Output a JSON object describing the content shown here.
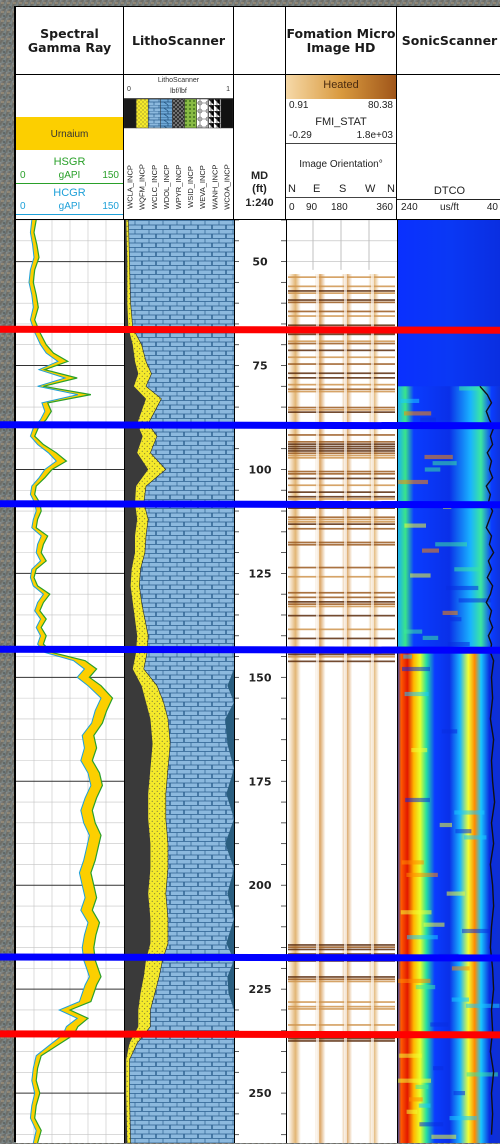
{
  "panel_titles": {
    "gamma_1": "Spectral",
    "gamma_2": "Gamma Ray",
    "litho": "LithoScanner",
    "fmi_1": "Fomation Micro",
    "fmi_2": "Image HD",
    "sonic": "SonicScanner"
  },
  "gamma_header": {
    "fill_label": "Urnaium",
    "hsgr": {
      "name": "HSGR",
      "min": "0",
      "unit": "gAPI",
      "max": "150"
    },
    "hcgr": {
      "name": "HCGR",
      "min": "0",
      "unit": "gAPI",
      "max": "150"
    }
  },
  "litho_header": {
    "title": "LithoScanner",
    "unit": "lbf/lbf",
    "min": "0",
    "max": "1",
    "curves": [
      "WCLA_INCP",
      "WQFM_INCP",
      "WCLC_INCP",
      "WDOL_INCP",
      "WPYR_INCP",
      "WSID_INCP",
      "WEVA_INCP",
      "WANH_INCP",
      "WCOA_INCP"
    ]
  },
  "depth_header": {
    "label": "MD",
    "unit": "(ft)",
    "scale": "1:240"
  },
  "fmi_header": {
    "heated": "Heated",
    "heated_min": "0.91",
    "heated_max": "80.38",
    "stat_name": "FMI_STAT",
    "stat_min": "-0.29",
    "stat_max": "1.8e+03",
    "orientation": "Image Orientation°",
    "directions": [
      "N",
      "E",
      "S",
      "W",
      "N"
    ],
    "ticks": [
      "0",
      "90",
      "180",
      "360"
    ]
  },
  "sonic_header": {
    "curve": "DTCO",
    "min": "240",
    "unit": "us/ft",
    "max": "40"
  },
  "chart_data": {
    "type": "line",
    "y_axis": "MD (ft)",
    "depth_range": [
      40,
      262
    ],
    "depth_ticks": [
      50,
      75,
      100,
      125,
      150,
      175,
      200,
      225,
      250
    ],
    "markers": [
      {
        "depth": 66.5,
        "color": "#ff0000"
      },
      {
        "depth": 89.5,
        "color": "#0000ff"
      },
      {
        "depth": 108.5,
        "color": "#0000ff"
      },
      {
        "depth": 143.5,
        "color": "#0000ff"
      },
      {
        "depth": 217.5,
        "color": "#0000ff"
      },
      {
        "depth": 236,
        "color": "#ff0000"
      }
    ],
    "gamma_ray": {
      "unit": "gAPI",
      "range": [
        0,
        150
      ],
      "depths": [
        40,
        43,
        46,
        49,
        52,
        55,
        58,
        61,
        64,
        67,
        70,
        72,
        74,
        76,
        78,
        80,
        82,
        84,
        86,
        88,
        90,
        92,
        94,
        96,
        98,
        100,
        102,
        104,
        106,
        108,
        110,
        112,
        114,
        116,
        118,
        120,
        122,
        124,
        126,
        128,
        130,
        132,
        134,
        136,
        138,
        140,
        142,
        144,
        146,
        148,
        150,
        152,
        155,
        158,
        161,
        164,
        167,
        170,
        173,
        176,
        179,
        182,
        185,
        188,
        191,
        194,
        197,
        200,
        203,
        206,
        209,
        212,
        215,
        218,
        220,
        222,
        224,
        226,
        228,
        230,
        232,
        234,
        236,
        238,
        241,
        244,
        247,
        250,
        253,
        256,
        259,
        262
      ],
      "HCGR": [
        22,
        20,
        23,
        25,
        20,
        18,
        22,
        24,
        20,
        26,
        34,
        42,
        58,
        32,
        68,
        30,
        86,
        36,
        40,
        34,
        24,
        20,
        30,
        45,
        56,
        40,
        32,
        22,
        20,
        26,
        28,
        24,
        22,
        35,
        30,
        28,
        34,
        22,
        20,
        24,
        38,
        30,
        26,
        34,
        28,
        34,
        30,
        40,
        80,
        95,
        85,
        100,
        118,
        110,
        105,
        92,
        95,
        90,
        100,
        104,
        96,
        90,
        94,
        102,
        98,
        94,
        88,
        92,
        96,
        90,
        100,
        95,
        92,
        94,
        98,
        102,
        96,
        92,
        88,
        60,
        85,
        70,
        65,
        50,
        28,
        24,
        22,
        26,
        22,
        20,
        28,
        24
      ],
      "HSGR": [
        28,
        25,
        29,
        32,
        26,
        24,
        28,
        31,
        26,
        33,
        42,
        52,
        72,
        40,
        85,
        38,
        104,
        44,
        49,
        42,
        31,
        26,
        38,
        56,
        70,
        50,
        40,
        28,
        26,
        33,
        35,
        30,
        28,
        44,
        38,
        35,
        42,
        28,
        25,
        30,
        47,
        38,
        33,
        42,
        35,
        42,
        38,
        50,
        96,
        112,
        102,
        118,
        134,
        126,
        120,
        108,
        112,
        106,
        116,
        120,
        112,
        106,
        110,
        118,
        114,
        110,
        104,
        108,
        112,
        106,
        116,
        111,
        108,
        110,
        114,
        118,
        112,
        108,
        104,
        75,
        100,
        86,
        80,
        62,
        35,
        30,
        28,
        33,
        28,
        26,
        35,
        30
      ]
    },
    "litho": {
      "unit": "lbf/lbf",
      "range": [
        0,
        1
      ],
      "depths": [
        40,
        50,
        60,
        66,
        70,
        74,
        77,
        80,
        83,
        86,
        89,
        92,
        96,
        100,
        104,
        108,
        112,
        116,
        120,
        124,
        128,
        132,
        136,
        140,
        144,
        148,
        152,
        156,
        160,
        166,
        172,
        178,
        184,
        190,
        196,
        202,
        208,
        214,
        218,
        222,
        226,
        230,
        234,
        238,
        242,
        250,
        262
      ],
      "WCLA_INCP": [
        0.02,
        0.03,
        0.03,
        0.04,
        0.08,
        0.1,
        0.13,
        0.09,
        0.2,
        0.16,
        0.12,
        0.17,
        0.12,
        0.22,
        0.11,
        0.1,
        0.12,
        0.1,
        0.1,
        0.07,
        0.06,
        0.08,
        0.1,
        0.12,
        0.11,
        0.08,
        0.16,
        0.2,
        0.24,
        0.26,
        0.24,
        0.22,
        0.22,
        0.24,
        0.24,
        0.22,
        0.24,
        0.24,
        0.2,
        0.18,
        0.15,
        0.13,
        0.13,
        0.05,
        0.02,
        0.02,
        0.03
      ],
      "WQFM_INCP": [
        0.04,
        0.05,
        0.06,
        0.08,
        0.16,
        0.2,
        0.25,
        0.2,
        0.34,
        0.28,
        0.22,
        0.3,
        0.24,
        0.38,
        0.2,
        0.18,
        0.22,
        0.2,
        0.19,
        0.15,
        0.14,
        0.16,
        0.19,
        0.22,
        0.21,
        0.18,
        0.3,
        0.36,
        0.4,
        0.42,
        0.4,
        0.38,
        0.38,
        0.4,
        0.4,
        0.38,
        0.4,
        0.4,
        0.35,
        0.32,
        0.28,
        0.24,
        0.24,
        0.12,
        0.05,
        0.05,
        0.06
      ],
      "WANH_INCP": [
        0,
        0,
        0,
        0,
        0,
        0,
        0,
        0,
        0,
        0,
        0,
        0,
        0,
        0,
        0,
        0,
        0,
        0,
        0,
        0,
        0,
        0,
        0,
        0,
        0,
        0,
        0.06,
        0,
        0.08,
        0.06,
        0,
        0.07,
        0,
        0.08,
        0,
        0.06,
        0,
        0.07,
        0,
        0.06,
        0.05,
        0,
        0,
        0,
        0,
        0,
        0
      ]
    },
    "sonic": {
      "curve": "DTCO",
      "unit": "us/ft",
      "range": [
        240,
        40
      ],
      "depths": [
        80,
        82,
        84,
        86,
        88,
        90,
        92,
        94,
        96,
        98,
        100,
        102,
        104,
        106,
        108,
        110,
        112,
        114,
        116,
        118,
        120,
        122,
        124,
        126,
        128,
        130,
        132,
        134,
        136,
        138,
        140,
        142,
        144,
        146,
        150,
        155,
        160,
        165,
        170,
        175,
        180,
        185,
        190,
        195,
        200,
        205,
        210,
        215,
        220,
        225,
        230,
        235,
        240,
        245,
        250,
        255,
        260
      ],
      "DTCO": [
        82,
        68,
        60,
        70,
        64,
        56,
        62,
        58,
        68,
        60,
        64,
        58,
        70,
        62,
        66,
        58,
        64,
        70,
        60,
        64,
        56,
        66,
        60,
        68,
        58,
        62,
        70,
        60,
        64,
        58,
        66,
        60,
        62,
        56,
        60,
        58,
        62,
        56,
        60,
        58,
        54,
        60,
        56,
        62,
        58,
        56,
        60,
        62,
        58,
        56,
        60,
        58,
        62,
        56,
        60,
        58,
        60
      ]
    }
  }
}
